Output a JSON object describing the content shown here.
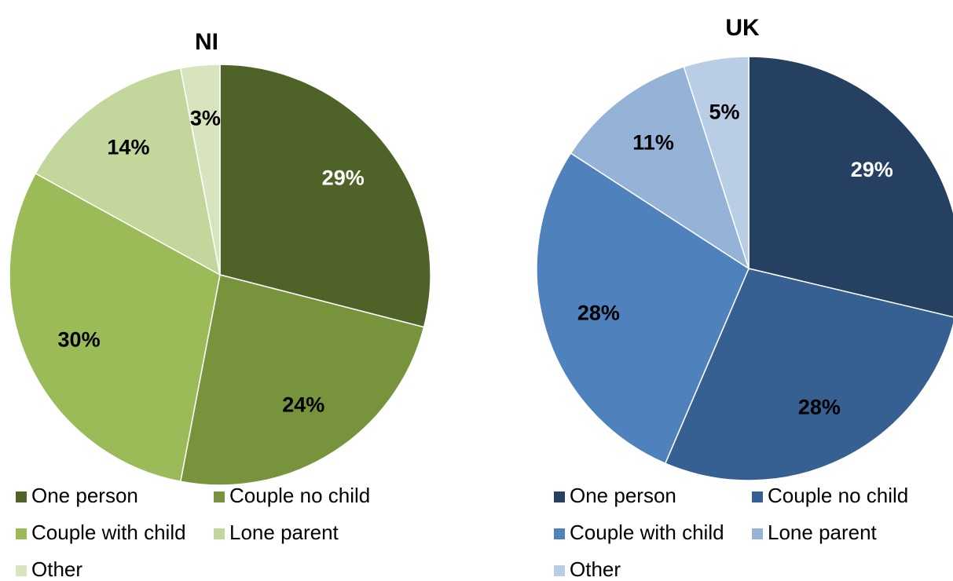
{
  "chart_data": [
    {
      "type": "pie",
      "title": "NI",
      "categories": [
        "One person",
        "Couple no child",
        "Couple with child",
        "Lone parent",
        "Other"
      ],
      "values": [
        29,
        24,
        30,
        14,
        3
      ],
      "value_labels": [
        "29%",
        "24%",
        "30%",
        "14%",
        "3%"
      ],
      "colors": [
        "#4f6228",
        "#77933c",
        "#9bbb59",
        "#c3d69b",
        "#d7e4bd"
      ],
      "label_colors": [
        "#ffffff",
        "#000000",
        "#000000",
        "#000000",
        "#000000"
      ]
    },
    {
      "type": "pie",
      "title": "UK",
      "categories": [
        "One person",
        "Couple no child",
        "Couple with child",
        "Lone parent",
        "Other"
      ],
      "values": [
        29,
        28,
        28,
        11,
        5
      ],
      "value_labels": [
        "29%",
        "28%",
        "28%",
        "11%",
        "5%"
      ],
      "colors": [
        "#254061",
        "#376092",
        "#4f81bd",
        "#95b3d7",
        "#b9cde5"
      ],
      "label_colors": [
        "#ffffff",
        "#000000",
        "#000000",
        "#000000",
        "#000000"
      ]
    }
  ]
}
